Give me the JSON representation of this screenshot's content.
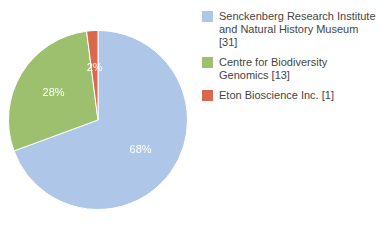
{
  "chart_data": {
    "type": "pie",
    "categories": [
      "Senckenberg Research Institute\nand Natural History Museum [31]",
      "Centre for Biodiversity\nGenomics [13]",
      "Eton Bioscience Inc. [1]"
    ],
    "values": [
      68,
      28,
      2
    ],
    "value_labels": [
      "68%",
      "28%",
      "2%"
    ],
    "colors": [
      "#aec6e8",
      "#9dc06e",
      "#d9694e"
    ],
    "data_labels": true,
    "legend": "right"
  }
}
